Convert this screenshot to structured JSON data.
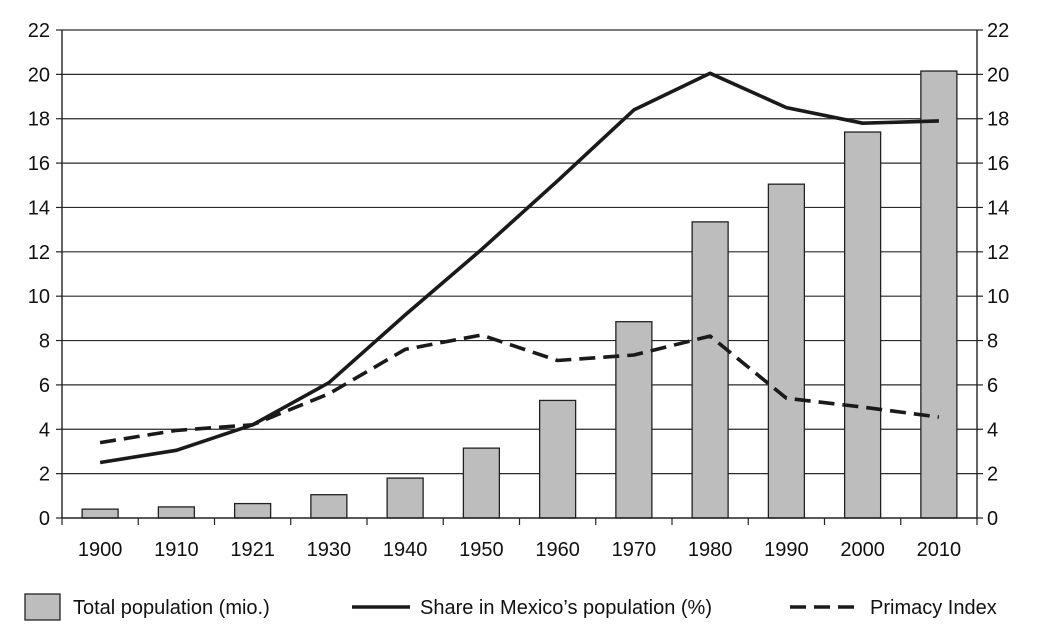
{
  "chart_data": {
    "type": "bar",
    "categories": [
      "1900",
      "1910",
      "1921",
      "1930",
      "1940",
      "1950",
      "1960",
      "1970",
      "1980",
      "1990",
      "2000",
      "2010"
    ],
    "series": [
      {
        "name": "Total population (mio.)",
        "type": "bar",
        "color": "#bdbdbd",
        "values": [
          0.4,
          0.5,
          0.65,
          1.05,
          1.8,
          3.15,
          5.3,
          8.85,
          13.35,
          15.05,
          17.4,
          20.15
        ]
      },
      {
        "name": "Share in Mexico's population (%)",
        "type": "line",
        "style": "solid",
        "color": "#1a1a1a",
        "values": [
          2.5,
          3.05,
          4.2,
          6.1,
          9.15,
          12.1,
          15.2,
          18.4,
          20.05,
          18.5,
          17.8,
          17.9
        ]
      },
      {
        "name": "Primacy Index",
        "type": "line",
        "style": "dashed",
        "color": "#1a1a1a",
        "values": [
          3.4,
          3.95,
          4.2,
          5.6,
          7.6,
          8.25,
          7.1,
          7.35,
          8.2,
          5.4,
          5.0,
          4.55
        ]
      }
    ],
    "yticks": [
      "0",
      "2",
      "4",
      "6",
      "8",
      "10",
      "12",
      "14",
      "16",
      "18",
      "20",
      "22"
    ],
    "ylim": [
      0,
      22
    ],
    "right_axis": true,
    "grid": true,
    "legend_position": "bottom",
    "legend": [
      {
        "label": "Total population (mio.)",
        "marker": "bar"
      },
      {
        "label": "Share in Mexico’s population (%)",
        "marker": "solid-line"
      },
      {
        "label": "Primacy Index",
        "marker": "dashed-line"
      }
    ],
    "title": "",
    "xlabel": "",
    "ylabel": ""
  }
}
